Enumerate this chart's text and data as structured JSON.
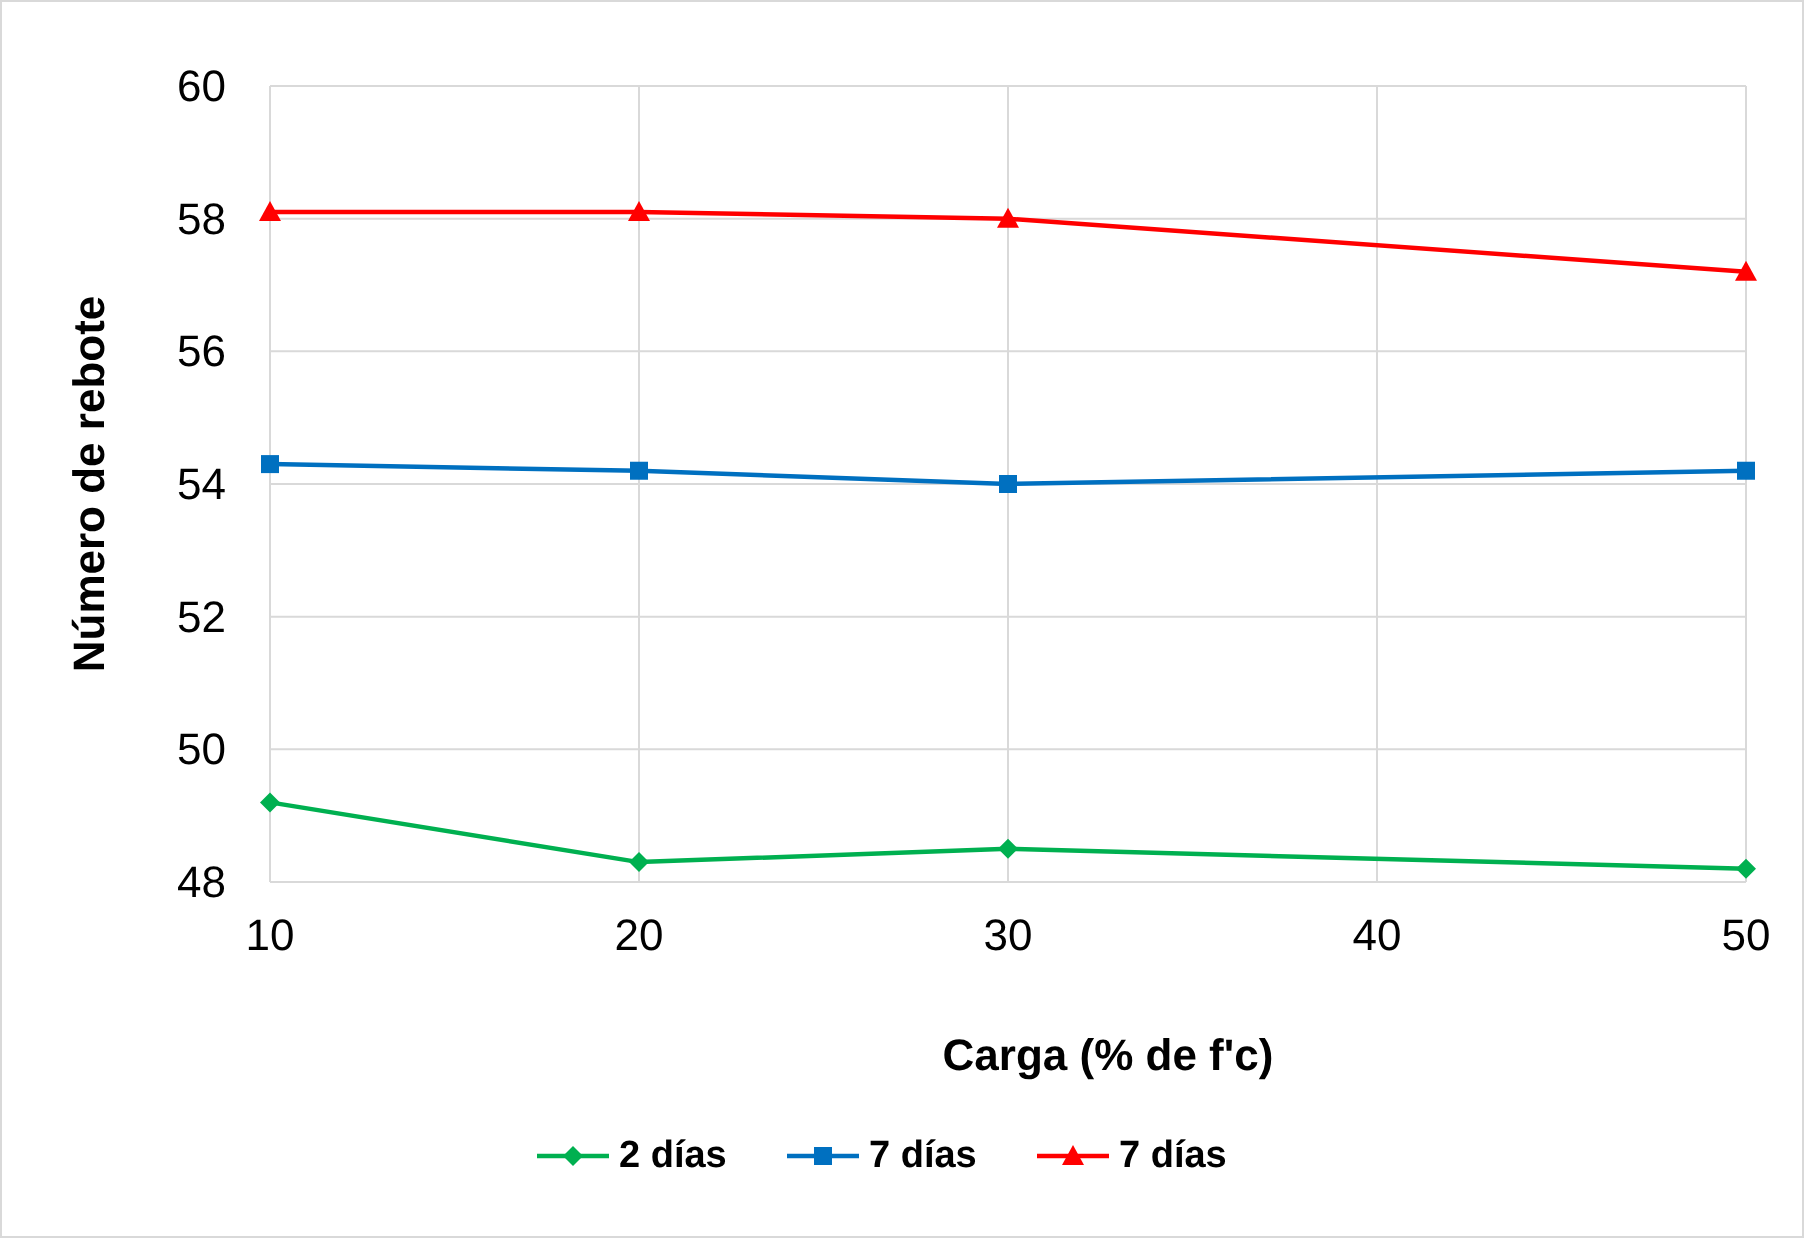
{
  "chart_data": {
    "type": "line",
    "xlabel": "Carga (% de f'c)",
    "ylabel": "Número de rebote",
    "xlim": [
      10,
      50
    ],
    "xticks": [
      10,
      20,
      30,
      40,
      50
    ],
    "ylim": [
      48,
      60
    ],
    "yticks": [
      48,
      50,
      52,
      54,
      56,
      58,
      60
    ],
    "grid": true,
    "legend": "bottom",
    "series": [
      {
        "name": "2 días",
        "color": "#00b050",
        "marker": "diamond",
        "x": [
          10,
          20,
          30,
          50
        ],
        "values": [
          49.2,
          48.3,
          48.5,
          48.2
        ]
      },
      {
        "name": "7 días",
        "color": "#0070c0",
        "marker": "square",
        "x": [
          10,
          20,
          30,
          50
        ],
        "values": [
          54.3,
          54.2,
          54.0,
          54.2
        ]
      },
      {
        "name": "7 días",
        "color": "#ff0000",
        "marker": "triangle",
        "x": [
          10,
          20,
          30,
          50
        ],
        "values": [
          58.1,
          58.1,
          58.0,
          57.2
        ]
      }
    ]
  }
}
